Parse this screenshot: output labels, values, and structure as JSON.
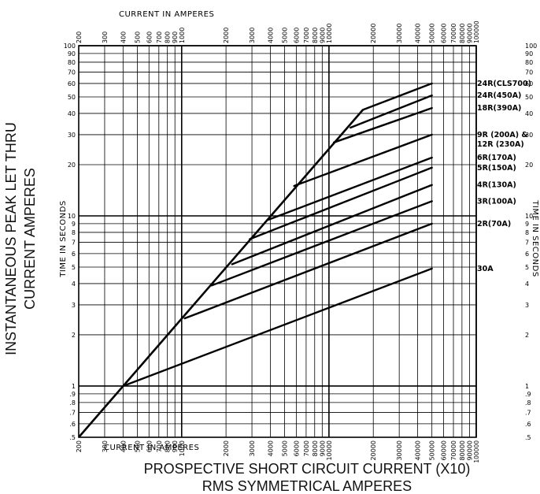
{
  "chart_data": {
    "type": "line",
    "title": "",
    "x_scale": "log",
    "y_scale": "log",
    "xlim": [
      200,
      100000
    ],
    "ylim": [
      0.5,
      100
    ],
    "grid": true,
    "xlabel_top": "CURRENT   IN   AMPERES",
    "xlabel_bottom": "CURRENT   IN   AMPERES",
    "xlabel_main_line1": "PROSPECTIVE SHORT CIRCUIT CURRENT (X10)",
    "xlabel_main_line2": "RMS SYMMETRICAL AMPERES",
    "ylabel_main_line1": "INSTANTANEOUS PEAK LET THRU",
    "ylabel_main_line2": "CURRENT AMPERES",
    "ylabel_left": "TIME   IN   SECONDS",
    "ylabel_right": "TIME   IN   SECONDS",
    "x_ticks": [
      {
        "v": 200,
        "t": "200"
      },
      {
        "v": 300,
        "t": "300"
      },
      {
        "v": 400,
        "t": "400"
      },
      {
        "v": 500,
        "t": "500"
      },
      {
        "v": 600,
        "t": "600"
      },
      {
        "v": 700,
        "t": "700"
      },
      {
        "v": 800,
        "t": "800"
      },
      {
        "v": 900,
        "t": "900"
      },
      {
        "v": 1000,
        "t": "1000"
      },
      {
        "v": 2000,
        "t": "2000"
      },
      {
        "v": 3000,
        "t": "3000"
      },
      {
        "v": 4000,
        "t": "4000"
      },
      {
        "v": 5000,
        "t": "5000"
      },
      {
        "v": 6000,
        "t": "6000"
      },
      {
        "v": 7000,
        "t": "7000"
      },
      {
        "v": 8000,
        "t": "8000"
      },
      {
        "v": 9000,
        "t": "9000"
      },
      {
        "v": 10000,
        "t": "10000"
      },
      {
        "v": 20000,
        "t": "20000"
      },
      {
        "v": 30000,
        "t": "30000"
      },
      {
        "v": 40000,
        "t": "40000"
      },
      {
        "v": 50000,
        "t": "50000"
      },
      {
        "v": 60000,
        "t": "60000"
      },
      {
        "v": 70000,
        "t": "70000"
      },
      {
        "v": 80000,
        "t": "80000"
      },
      {
        "v": 90000,
        "t": "90000"
      },
      {
        "v": 100000,
        "t": "100000"
      }
    ],
    "y_ticks": [
      {
        "v": 0.5,
        "t": ".5"
      },
      {
        "v": 0.6,
        "t": ".6"
      },
      {
        "v": 0.7,
        "t": ".7"
      },
      {
        "v": 0.8,
        "t": ".8"
      },
      {
        "v": 0.9,
        "t": ".9"
      },
      {
        "v": 1,
        "t": "1"
      },
      {
        "v": 2,
        "t": "2"
      },
      {
        "v": 3,
        "t": "3"
      },
      {
        "v": 4,
        "t": "4"
      },
      {
        "v": 5,
        "t": "5"
      },
      {
        "v": 6,
        "t": "6"
      },
      {
        "v": 7,
        "t": "7"
      },
      {
        "v": 8,
        "t": "8"
      },
      {
        "v": 9,
        "t": "9"
      },
      {
        "v": 10,
        "t": "10"
      },
      {
        "v": 20,
        "t": "20"
      },
      {
        "v": 30,
        "t": "30"
      },
      {
        "v": 40,
        "t": "40"
      },
      {
        "v": 50,
        "t": "50"
      },
      {
        "v": 60,
        "t": "60"
      },
      {
        "v": 70,
        "t": "70"
      },
      {
        "v": 80,
        "t": "80"
      },
      {
        "v": 90,
        "t": "90"
      },
      {
        "v": 100,
        "t": "100"
      }
    ],
    "envelope": [
      [
        200,
        0.5
      ],
      [
        17000,
        42
      ]
    ],
    "series": [
      {
        "name": "24R(CLS700)",
        "points": [
          [
            17000,
            42
          ],
          [
            50000,
            60
          ]
        ]
      },
      {
        "name": "24R(450A)",
        "points": [
          [
            14000,
            33
          ],
          [
            50000,
            51
          ]
        ]
      },
      {
        "name": "18R(390A)",
        "points": [
          [
            10800,
            27
          ],
          [
            50000,
            43
          ]
        ]
      },
      {
        "name": "9R (200A) &",
        "points": [
          [
            5800,
            15
          ],
          [
            50000,
            30
          ]
        ]
      },
      {
        "name": "12R (230A)",
        "points": []
      },
      {
        "name": "6R(170A)",
        "points": [
          [
            3900,
            9.5
          ],
          [
            50000,
            22
          ]
        ]
      },
      {
        "name": "5R(150A)",
        "points": [
          [
            2900,
            7.3
          ],
          [
            50000,
            19.2
          ]
        ]
      },
      {
        "name": "4R(130A)",
        "points": [
          [
            2200,
            5.2
          ],
          [
            50000,
            15.2
          ]
        ]
      },
      {
        "name": "3R(100A)",
        "points": [
          [
            1600,
            3.9
          ],
          [
            50000,
            12.2
          ]
        ]
      },
      {
        "name": "2R(70A)",
        "points": [
          [
            1050,
            2.5
          ],
          [
            50000,
            9
          ]
        ]
      },
      {
        "name": "30A",
        "points": [
          [
            400,
            1.0
          ],
          [
            50000,
            4.9
          ]
        ]
      }
    ]
  }
}
